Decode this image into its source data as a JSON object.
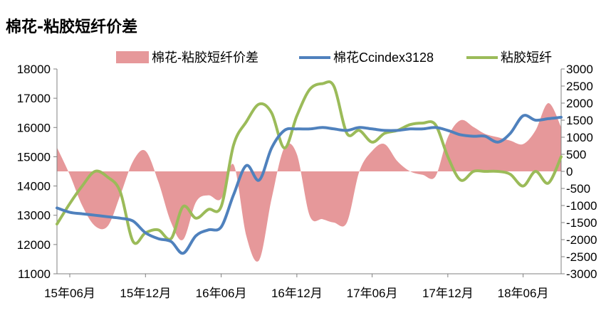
{
  "title": "棉花-粘胶短纤价差",
  "colors": {
    "spread": "#E6989A",
    "cotton": "#4F81BD",
    "viscose": "#9BBB59",
    "axis": "#808080"
  },
  "chart_data": {
    "type": "area+line",
    "title": "棉花-粘胶短纤价差",
    "legend_position": "top",
    "grid": false,
    "x": [
      "2015-05-01",
      "2015-06-01",
      "2015-07-01",
      "2015-08-01",
      "2015-09-01",
      "2015-10-01",
      "2015-11-01",
      "2015-12-01",
      "2016-01-01",
      "2016-02-01",
      "2016-03-01",
      "2016-04-01",
      "2016-05-01",
      "2016-06-01",
      "2016-07-01",
      "2016-08-01",
      "2016-09-01",
      "2016-10-01",
      "2016-11-01",
      "2016-12-01",
      "2017-01-01",
      "2017-02-01",
      "2017-03-01",
      "2017-04-01",
      "2017-05-01",
      "2017-06-01",
      "2017-07-01",
      "2017-08-01",
      "2017-09-01",
      "2017-10-01",
      "2017-11-01",
      "2017-12-01",
      "2018-01-01",
      "2018-02-01",
      "2018-03-01",
      "2018-04-01",
      "2018-05-01",
      "2018-06-01",
      "2018-07-01",
      "2018-08-01",
      "2018-09-01"
    ],
    "x_tick_labels": [
      "15年06月",
      "15年12月",
      "16年06月",
      "16年12月",
      "17年06月",
      "17年12月",
      "18年06月"
    ],
    "left_axis": {
      "min": 11000,
      "max": 18000,
      "ticks": [
        11000,
        12000,
        13000,
        14000,
        15000,
        16000,
        17000,
        18000
      ]
    },
    "right_axis": {
      "min": -3000,
      "max": 3000,
      "ticks": [
        -3000,
        -2500,
        -2000,
        -1500,
        -1000,
        -500,
        0,
        500,
        1000,
        1500,
        2000,
        2500,
        3000
      ]
    },
    "series": [
      {
        "name": "棉花-粘胶短纤价差",
        "type": "area",
        "axis": "right",
        "values": [
          700,
          -100,
          -1000,
          -1600,
          -1600,
          -700,
          300,
          600,
          -300,
          -1500,
          -2000,
          -900,
          -700,
          -800,
          200,
          -1900,
          -2600,
          -800,
          700,
          500,
          -1300,
          -1400,
          -1500,
          -1500,
          0,
          600,
          800,
          300,
          0,
          -100,
          -150,
          1000,
          1500,
          1300,
          1100,
          1000,
          900,
          800,
          1200,
          2000,
          1300
        ]
      },
      {
        "name": "棉花Ccindex3128",
        "type": "line",
        "axis": "left",
        "values": [
          13250,
          13100,
          13050,
          13000,
          12950,
          12900,
          12800,
          12400,
          12200,
          12100,
          11700,
          12300,
          12500,
          12600,
          13700,
          14700,
          14200,
          15300,
          15900,
          15950,
          15950,
          16000,
          15950,
          15900,
          16000,
          15950,
          15900,
          15900,
          15950,
          15950,
          16000,
          15900,
          15750,
          15700,
          15700,
          15500,
          15800,
          16400,
          16250,
          16300,
          16350
        ]
      },
      {
        "name": "粘胶短纤",
        "type": "line",
        "axis": "left",
        "values": [
          12700,
          13400,
          14000,
          14500,
          14300,
          13800,
          12100,
          12400,
          12500,
          12200,
          13300,
          12900,
          13200,
          13300,
          15400,
          16200,
          16800,
          16500,
          15300,
          16400,
          17300,
          17500,
          17400,
          15800,
          15900,
          15500,
          15800,
          15900,
          16100,
          16150,
          16100,
          15000,
          14200,
          14500,
          14500,
          14500,
          14400,
          14000,
          14500,
          14100,
          15000
        ]
      }
    ]
  }
}
